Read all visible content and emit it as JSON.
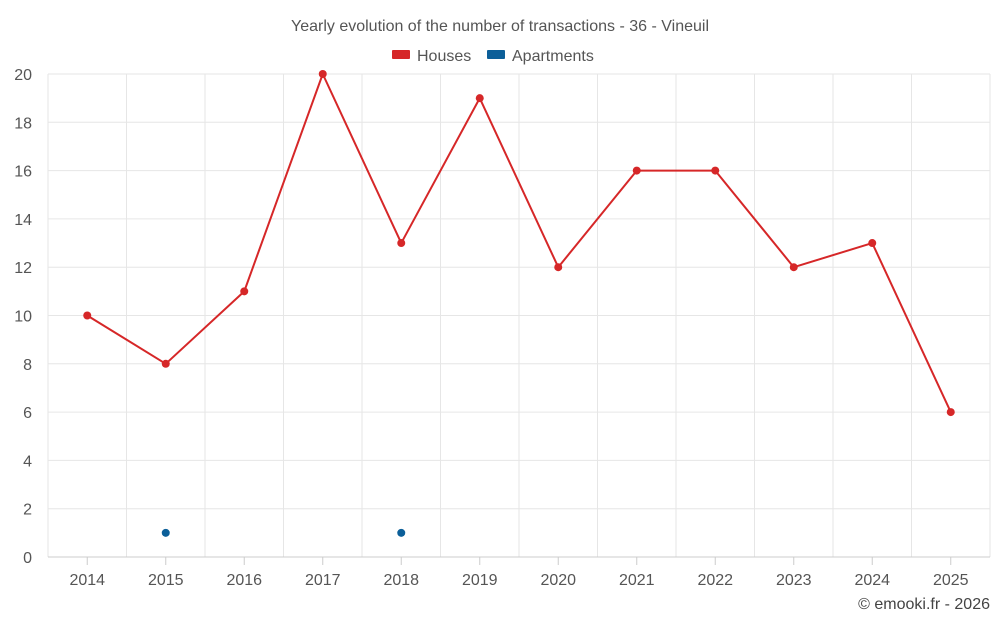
{
  "colors": {
    "houses": "#d62728",
    "apartments": "#0c5f99",
    "grid": "#e6e6e6",
    "text": "#555555"
  },
  "credit": "© emooki.fr - 2026",
  "chart_data": {
    "type": "line",
    "title": "Yearly evolution of the number of transactions - 36 - Vineuil",
    "xlabel": "",
    "ylabel": "",
    "categories": [
      "2014",
      "2015",
      "2016",
      "2017",
      "2018",
      "2019",
      "2020",
      "2021",
      "2022",
      "2023",
      "2024",
      "2025"
    ],
    "ylim": [
      0,
      20
    ],
    "yticks": [
      0,
      2,
      4,
      6,
      8,
      10,
      12,
      14,
      16,
      18,
      20
    ],
    "grid": true,
    "legend_position": "top-center",
    "series": [
      {
        "name": "Houses",
        "color_key": "houses",
        "values": [
          10,
          8,
          11,
          20,
          13,
          19,
          12,
          16,
          16,
          12,
          13,
          6
        ]
      },
      {
        "name": "Apartments",
        "color_key": "apartments",
        "values": [
          null,
          1,
          null,
          null,
          1,
          null,
          null,
          null,
          null,
          null,
          null,
          null
        ]
      }
    ]
  }
}
